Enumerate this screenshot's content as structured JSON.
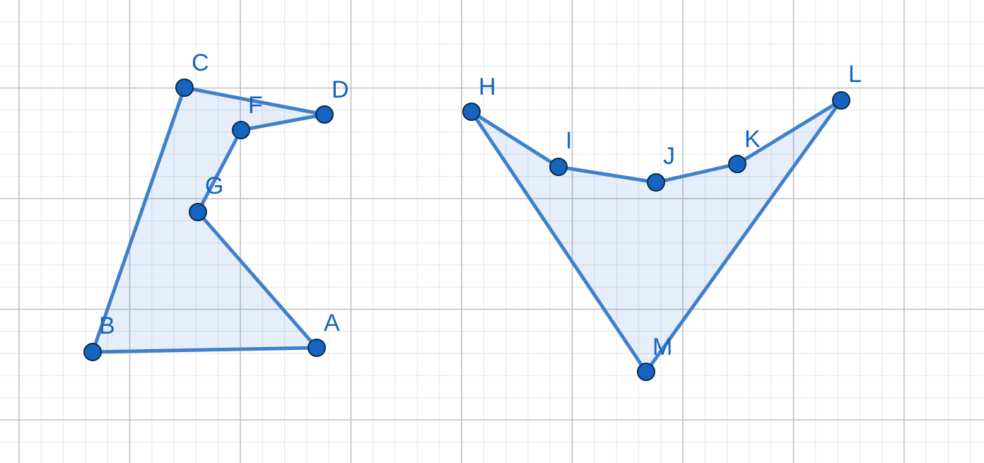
{
  "polygons": [
    {
      "name": "polygon-1",
      "vertices": [
        "C",
        "D",
        "F",
        "G",
        "A",
        "B"
      ]
    },
    {
      "name": "polygon-2",
      "vertices": [
        "H",
        "I",
        "J",
        "K",
        "L",
        "M"
      ]
    }
  ],
  "points": [
    {
      "label": "A"
    },
    {
      "label": "B"
    },
    {
      "label": "C"
    },
    {
      "label": "D"
    },
    {
      "label": "F"
    },
    {
      "label": "G"
    },
    {
      "label": "H"
    },
    {
      "label": "I"
    },
    {
      "label": "J"
    },
    {
      "label": "K"
    },
    {
      "label": "L"
    },
    {
      "label": "M"
    }
  ],
  "colors": {
    "stroke": "#3f80cc",
    "fill": "rgba(65,130,205,0.13)",
    "point": "#1565c0",
    "label": "#1565c0",
    "grid_major": "#c0c0c0",
    "grid_minor": "#e6e6e6"
  }
}
